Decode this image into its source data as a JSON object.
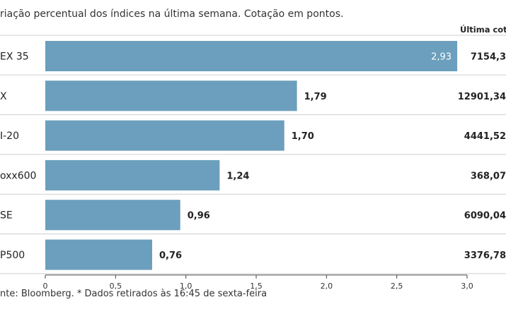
{
  "subtitle": "riação percentual dos índices na última semana. Cotação em pontos.",
  "column_header": "Última cotaç",
  "source": "nte: Bloomberg.  * Dados retirados às 16:45 de sexta-feira",
  "colors": {
    "bar": "#6b9fbd",
    "row_border": "#cfcfcf",
    "label_inside": "#ffffff"
  },
  "chart_data": {
    "type": "bar",
    "orientation": "horizontal",
    "categories": [
      "EX 35",
      "X",
      "I-20",
      "oxx600",
      "SE",
      "P500"
    ],
    "values": [
      2.93,
      1.79,
      1.7,
      1.24,
      0.96,
      0.76
    ],
    "value_labels": [
      "2,93",
      "1,79",
      "1,70",
      "1,24",
      "0,96",
      "0,76"
    ],
    "last_quote_labels": [
      "7154,3",
      "12901,34",
      "4441,52",
      "368,07",
      "6090,04",
      "3376,78"
    ],
    "xlim": [
      0,
      3.0
    ],
    "x_ticks": [
      0,
      0.5,
      1.0,
      1.5,
      2.0,
      2.5,
      3.0
    ],
    "x_tick_labels": [
      "0",
      "0,5",
      "1,0",
      "1,5",
      "2,0",
      "2,5",
      "3,0"
    ],
    "grid": false
  }
}
